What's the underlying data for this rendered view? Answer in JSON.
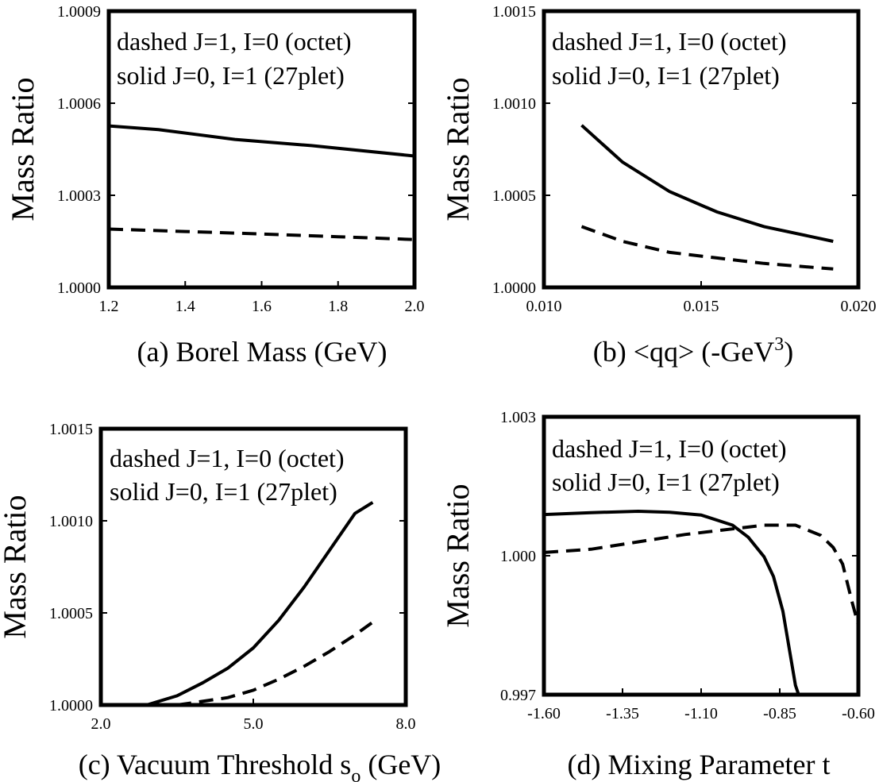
{
  "chart_data": [
    {
      "type": "line",
      "panel": "a",
      "caption": "(a)  Borel Mass (GeV)",
      "xlabel": "(a)  Borel Mass (GeV)",
      "ylabel": "Mass Ratio",
      "xlim": [
        1.2,
        2.0
      ],
      "ylim": [
        1.0,
        1.0009
      ],
      "xticks": [
        1.2,
        1.4,
        1.6,
        1.8,
        2.0
      ],
      "xtick_labels": [
        "1.2",
        "1.4",
        "1.6",
        "1.8",
        "2.0"
      ],
      "yticks": [
        1.0,
        1.0003,
        1.0006,
        1.0009
      ],
      "ytick_labels": [
        "1.0000",
        "1.0003",
        "1.0006",
        "1.0009"
      ],
      "legend": [
        "dashed J=1, I=0 (octet)",
        "solid J=0, I=1 (27plet)"
      ],
      "series": [
        {
          "style": "solid",
          "x": [
            1.2,
            1.33,
            1.53,
            1.73,
            2.0
          ],
          "y": [
            1.000526,
            1.000514,
            1.000482,
            1.000462,
            1.000428
          ]
        },
        {
          "style": "dashed",
          "x": [
            1.2,
            1.4,
            1.6,
            1.8,
            2.0
          ],
          "y": [
            1.00019,
            1.000182,
            1.000174,
            1.000165,
            1.000156
          ]
        }
      ]
    },
    {
      "type": "line",
      "panel": "b",
      "caption": "(b)  <qq> (-GeV",
      "caption_sup": "3",
      "caption_end": ")",
      "xlabel": "(b)  <qq> (-GeV3)",
      "ylabel": "Mass Ratio",
      "xlim": [
        0.01,
        0.02
      ],
      "ylim": [
        1.0,
        1.0015
      ],
      "xticks": [
        0.01,
        0.015,
        0.02
      ],
      "xtick_labels": [
        "0.010",
        "0.015",
        "0.020"
      ],
      "yticks": [
        1.0,
        1.0005,
        1.001,
        1.0015
      ],
      "ytick_labels": [
        "1.0000",
        "1.0005",
        "1.0010",
        "1.0015"
      ],
      "legend": [
        "dashed J=1, I=0 (octet)",
        "solid J=0, I=1 (27plet)"
      ],
      "series": [
        {
          "style": "solid",
          "x": [
            0.0112,
            0.0125,
            0.014,
            0.0155,
            0.017,
            0.0192
          ],
          "y": [
            1.00088,
            1.00068,
            1.00052,
            1.00041,
            1.00033,
            1.00025
          ]
        },
        {
          "style": "dashed",
          "x": [
            0.0112,
            0.0125,
            0.014,
            0.0155,
            0.017,
            0.0192
          ],
          "y": [
            1.00033,
            1.00025,
            1.00019,
            1.00016,
            1.00013,
            1.0001
          ]
        }
      ]
    },
    {
      "type": "line",
      "panel": "c",
      "caption": "(c)  Vacuum Threshold s",
      "caption_sub": "o",
      "caption_end": " (GeV)",
      "xlabel": "(c)  Vacuum Threshold so (GeV)",
      "ylabel": "Mass Ratio",
      "xlim": [
        2.0,
        8.0
      ],
      "ylim": [
        1.0,
        1.0015
      ],
      "xticks": [
        2.0,
        5.0,
        8.0
      ],
      "xtick_labels": [
        "2.0",
        "5.0",
        "8.0"
      ],
      "yticks": [
        1.0,
        1.0005,
        1.001,
        1.0015
      ],
      "ytick_labels": [
        "1.0000",
        "1.0005",
        "1.0010",
        "1.0015"
      ],
      "legend": [
        "dashed J=1, I=0 (octet)",
        "solid J=0, I=1 (27plet)"
      ],
      "series": [
        {
          "style": "solid",
          "x": [
            2.9,
            3.5,
            4.0,
            4.5,
            5.0,
            5.5,
            6.0,
            6.5,
            7.0,
            7.35
          ],
          "y": [
            1.0,
            1.00005,
            1.00012,
            1.0002,
            1.00031,
            1.00046,
            1.00064,
            1.00084,
            1.00104,
            1.0011
          ]
        },
        {
          "style": "dashed",
          "x": [
            3.5,
            4.0,
            4.5,
            5.0,
            5.5,
            6.0,
            6.5,
            7.0,
            7.45
          ],
          "y": [
            1.0,
            1.00002,
            1.00004,
            1.00008,
            1.00014,
            1.00021,
            1.00029,
            1.00038,
            1.00047
          ]
        }
      ]
    },
    {
      "type": "line",
      "panel": "d",
      "caption": "(d)  Mixing Parameter t",
      "xlabel": "(d)  Mixing Parameter t",
      "ylabel": "Mass Ratio",
      "xlim": [
        -1.6,
        -0.6
      ],
      "ylim": [
        0.997,
        1.003
      ],
      "xticks": [
        -1.6,
        -1.35,
        -1.1,
        -0.85,
        -0.6
      ],
      "xtick_labels": [
        "-1.60",
        "-1.35",
        "-1.10",
        "-0.85",
        "-0.60"
      ],
      "yticks": [
        0.997,
        1.0,
        1.003
      ],
      "ytick_labels": [
        "0.997",
        "1.000",
        "1.003"
      ],
      "legend": [
        "dashed J=1, I=0 (octet)",
        "solid J=0, I=1 (27plet)"
      ],
      "series": [
        {
          "style": "solid",
          "x": [
            -1.6,
            -1.45,
            -1.3,
            -1.2,
            -1.1,
            -1.0,
            -0.95,
            -0.9,
            -0.87,
            -0.84,
            -0.82,
            -0.8,
            -0.79
          ],
          "y": [
            1.00089,
            1.00093,
            1.00096,
            1.00094,
            1.00088,
            1.00066,
            1.0004,
            0.99998,
            0.99955,
            0.9988,
            0.998,
            0.9972,
            0.997
          ]
        },
        {
          "style": "dashed",
          "x": [
            -1.6,
            -1.45,
            -1.3,
            -1.15,
            -1.0,
            -0.9,
            -0.8,
            -0.72,
            -0.68,
            -0.65,
            -0.62,
            -0.6
          ],
          "y": [
            1.00007,
            1.00014,
            1.0003,
            1.00046,
            1.00058,
            1.00066,
            1.00066,
            1.00044,
            1.00018,
            0.99982,
            0.999,
            0.9985
          ]
        }
      ]
    }
  ]
}
